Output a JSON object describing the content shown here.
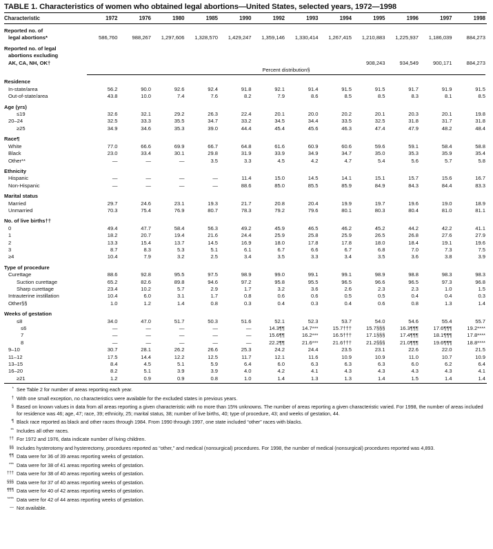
{
  "title": "TABLE 1. Characteristics of women who obtained legal abortions—United States, selected years, 1972—1998",
  "columns": [
    "Characteristic",
    "1972",
    "1976",
    "1980",
    "1985",
    "1990",
    "1992",
    "1993",
    "1994",
    "1995",
    "1996",
    "1997",
    "1998"
  ],
  "percent_distribution_label": "Percent distribution§",
  "rows": [
    {
      "label": "Reported no. of",
      "type": "sec",
      "values": []
    },
    {
      "label": "legal abortions*",
      "indent": 1,
      "bold": true,
      "values": [
        "586,760",
        "988,267",
        "1,297,606",
        "1,328,570",
        "1,429,247",
        "1,359,146",
        "1,330,414",
        "1,267,415",
        "1,210,883",
        "1,225,937",
        "1,186,039",
        "884,273"
      ]
    },
    {
      "label": "Reported no. of legal",
      "type": "sec",
      "values": []
    },
    {
      "label": "abortions excluding",
      "indent": 1,
      "bold": true,
      "values": []
    },
    {
      "label": "AK, CA, NH, OK†",
      "indent": 1,
      "bold": true,
      "values": [
        "",
        "",
        "",
        "",
        "",
        "",
        "",
        "",
        "908,243",
        "934,549",
        "900,171",
        "884,273"
      ]
    },
    {
      "type": "pd"
    },
    {
      "label": "Residence",
      "type": "sec",
      "values": []
    },
    {
      "label": "In-state/area",
      "indent": 1,
      "values": [
        "56.2",
        "90.0",
        "92.6",
        "92.4",
        "91.8",
        "92.1",
        "91.4",
        "91.5",
        "91.5",
        "91.7",
        "91.9",
        "91.5"
      ]
    },
    {
      "label": "Out-of-state/area",
      "indent": 1,
      "values": [
        "43.8",
        "10.0",
        "7.4",
        "7.6",
        "8.2",
        "7.9",
        "8.6",
        "8.5",
        "8.5",
        "8.3",
        "8.1",
        "8.5"
      ]
    },
    {
      "label": "Age (yrs)",
      "type": "sec",
      "values": []
    },
    {
      "label": "≤19",
      "indent": 2,
      "values": [
        "32.6",
        "32.1",
        "29.2",
        "26.3",
        "22.4",
        "20.1",
        "20.0",
        "20.2",
        "20.1",
        "20.3",
        "20.1",
        "19.8"
      ]
    },
    {
      "label": "20–24",
      "indent": 1,
      "values": [
        "32.5",
        "33.3",
        "35.5",
        "34.7",
        "33.2",
        "34.5",
        "34.4",
        "33.5",
        "32.5",
        "31.8",
        "31.7",
        "31.8"
      ]
    },
    {
      "label": "≥25",
      "indent": 2,
      "values": [
        "34.9",
        "34.6",
        "35.3",
        "39.0",
        "44.4",
        "45.4",
        "45.6",
        "46.3",
        "47.4",
        "47.9",
        "48.2",
        "48.4"
      ]
    },
    {
      "label": "Race¶",
      "type": "sec",
      "values": []
    },
    {
      "label": "White",
      "indent": 1,
      "values": [
        "77.0",
        "66.6",
        "69.9",
        "66.7",
        "64.8",
        "61.6",
        "60.9",
        "60.6",
        "59.6",
        "59.1",
        "58.4",
        "58.8"
      ]
    },
    {
      "label": "Black",
      "indent": 1,
      "values": [
        "23.0",
        "33.4",
        "30.1",
        "29.8",
        "31.9",
        "33.9",
        "34.9",
        "34.7",
        "35.0",
        "35.3",
        "35.9",
        "35.4"
      ]
    },
    {
      "label": "Other**",
      "indent": 1,
      "values": [
        "—",
        "—",
        "—",
        "3.5",
        "3.3",
        "4.5",
        "4.2",
        "4.7",
        "5.4",
        "5.6",
        "5.7",
        "5.8"
      ]
    },
    {
      "label": "Ethnicity",
      "type": "sec",
      "values": []
    },
    {
      "label": "Hispanic",
      "indent": 1,
      "values": [
        "—",
        "—",
        "—",
        "—",
        "11.4",
        "15.0",
        "14.5",
        "14.1",
        "15.1",
        "15.7",
        "15.6",
        "16.7"
      ]
    },
    {
      "label": "Non-Hispanic",
      "indent": 1,
      "values": [
        "—",
        "—",
        "—",
        "—",
        "88.6",
        "85.0",
        "85.5",
        "85.9",
        "84.9",
        "84.3",
        "84.4",
        "83.3"
      ]
    },
    {
      "label": "Marital status",
      "type": "sec",
      "values": []
    },
    {
      "label": "Married",
      "indent": 1,
      "values": [
        "29.7",
        "24.6",
        "23.1",
        "19.3",
        "21.7",
        "20.8",
        "20.4",
        "19.9",
        "19.7",
        "19.6",
        "19.0",
        "18.9"
      ]
    },
    {
      "label": "Unmarried",
      "indent": 1,
      "values": [
        "70.3",
        "75.4",
        "76.9",
        "80.7",
        "78.3",
        "79.2",
        "79.6",
        "80.1",
        "80.3",
        "80.4",
        "81.0",
        "81.1"
      ]
    },
    {
      "label": "No. of live births††",
      "type": "sec",
      "values": []
    },
    {
      "label": "0",
      "indent": 1,
      "values": [
        "49.4",
        "47.7",
        "58.4",
        "56.3",
        "49.2",
        "45.9",
        "46.5",
        "46.2",
        "45.2",
        "44.2",
        "42.2",
        "41.1"
      ]
    },
    {
      "label": "1",
      "indent": 1,
      "values": [
        "18.2",
        "20.7",
        "19.4",
        "21.6",
        "24.4",
        "25.9",
        "25.8",
        "25.9",
        "26.5",
        "26.8",
        "27.6",
        "27.9"
      ]
    },
    {
      "label": "2",
      "indent": 1,
      "values": [
        "13.3",
        "15.4",
        "13.7",
        "14.5",
        "16.9",
        "18.0",
        "17.8",
        "17.8",
        "18.0",
        "18.4",
        "19.1",
        "19.6"
      ]
    },
    {
      "label": "3",
      "indent": 1,
      "values": [
        "8.7",
        "8.3",
        "5.3",
        "5.1",
        "6.1",
        "6.7",
        "6.6",
        "6.7",
        "6.8",
        "7.0",
        "7.3",
        "7.5"
      ]
    },
    {
      "label": "≥4",
      "indent": 1,
      "values": [
        "10.4",
        "7.9",
        "3.2",
        "2.5",
        "3.4",
        "3.5",
        "3.3",
        "3.4",
        "3.5",
        "3.6",
        "3.8",
        "3.9"
      ]
    },
    {
      "label": "Type of procedure",
      "type": "sec",
      "values": []
    },
    {
      "label": "Curettage",
      "indent": 1,
      "values": [
        "88.6",
        "92.8",
        "95.5",
        "97.5",
        "98.9",
        "99.0",
        "99.1",
        "99.1",
        "98.9",
        "98.8",
        "98.3",
        "98.3"
      ]
    },
    {
      "label": "Suction curettage",
      "indent": 2,
      "values": [
        "65.2",
        "82.6",
        "89.8",
        "94.6",
        "97.2",
        "95.8",
        "95.5",
        "96.5",
        "96.6",
        "96.5",
        "97.3",
        "96.8"
      ]
    },
    {
      "label": "Sharp curettage",
      "indent": 2,
      "values": [
        "23.4",
        "10.2",
        "5.7",
        "2.9",
        "1.7",
        "3.2",
        "3.6",
        "2.6",
        "2.3",
        "2.3",
        "1.0",
        "1.5"
      ]
    },
    {
      "label": "Intrauterine instillation",
      "indent": 1,
      "values": [
        "10.4",
        "6.0",
        "3.1",
        "1.7",
        "0.8",
        "0.6",
        "0.6",
        "0.5",
        "0.5",
        "0.4",
        "0.4",
        "0.3"
      ]
    },
    {
      "label": "Other§§",
      "indent": 1,
      "values": [
        "1.0",
        "1.2",
        "1.4",
        "0.8",
        "0.3",
        "0.4",
        "0.3",
        "0.4",
        "0.6",
        "0.8",
        "1.3",
        "1.4"
      ]
    },
    {
      "label": "Weeks of gestation",
      "type": "sec",
      "values": []
    },
    {
      "label": "≤8",
      "indent": 2,
      "values": [
        "34.0",
        "47.0",
        "51.7",
        "50.3",
        "51.6",
        "52.1",
        "52.3",
        "53.7",
        "54.0",
        "54.6",
        "55.4",
        "55.7"
      ]
    },
    {
      "label": "≤6",
      "indent": 3,
      "values": [
        "—",
        "—",
        "—",
        "—",
        "—",
        "14.3¶¶",
        "14.7***",
        "15.7†††",
        "15.7§§§",
        "16.3¶¶¶",
        "17.6¶¶¶",
        "19.2****"
      ]
    },
    {
      "label": "7",
      "indent": 3,
      "values": [
        "—",
        "—",
        "—",
        "—",
        "—",
        "15.6¶¶",
        "16.2***",
        "16.5†††",
        "17.1§§§",
        "17.4¶¶¶",
        "18.1¶¶¶",
        "17.8****"
      ]
    },
    {
      "label": "8",
      "indent": 3,
      "values": [
        "—",
        "—",
        "—",
        "—",
        "—",
        "22.2¶¶",
        "21.6***",
        "21.6†††",
        "21.2§§§",
        "21.0¶¶¶",
        "19.6¶¶¶",
        "18.8****"
      ]
    },
    {
      "label": "9–10",
      "indent": 1,
      "values": [
        "30.7",
        "28.1",
        "26.2",
        "26.6",
        "25.3",
        "24.2",
        "24.4",
        "23.5",
        "23.1",
        "22.6",
        "22.0",
        "21.5"
      ]
    },
    {
      "label": "11–12",
      "indent": 1,
      "values": [
        "17.5",
        "14.4",
        "12.2",
        "12.5",
        "11.7",
        "12.1",
        "11.6",
        "10.9",
        "10.9",
        "11.0",
        "10.7",
        "10.9"
      ]
    },
    {
      "label": "13–15",
      "indent": 1,
      "values": [
        "8.4",
        "4.5",
        "5.1",
        "5.9",
        "6.4",
        "6.0",
        "6.3",
        "6.3",
        "6.3",
        "6.0",
        "6.2",
        "6.4"
      ]
    },
    {
      "label": "16–20",
      "indent": 1,
      "values": [
        "8.2",
        "5.1",
        "3.9",
        "3.9",
        "4.0",
        "4.2",
        "4.1",
        "4.3",
        "4.3",
        "4.3",
        "4.3",
        "4.1"
      ]
    },
    {
      "label": "≥21",
      "indent": 2,
      "type": "last",
      "values": [
        "1.2",
        "0.9",
        "0.9",
        "0.8",
        "1.0",
        "1.4",
        "1.3",
        "1.3",
        "1.4",
        "1.5",
        "1.4",
        "1.4"
      ]
    }
  ],
  "footnotes": [
    {
      "mark": "*",
      "text": "See Table 2 for number of areas reporting each year."
    },
    {
      "mark": "†",
      "text": "With one small exception, no characteristics were available for the excluded states in previous years."
    },
    {
      "mark": "§",
      "text": "Based on known values in data from all areas reporting a given characteristic with no more than 15% unknowns. The number of areas reporting a given characteristic varied. For 1998, the number of areas included for residence was 46; age, 47; race, 39; ethnicity, 25; marital status, 38; number of live births, 40; type of procedure, 43; and weeks of gestation, 44."
    },
    {
      "mark": "¶",
      "text": "Black race reported as black and other races through 1984. From 1990 through 1997, one state included “other” races with blacks."
    },
    {
      "mark": "**",
      "text": "Includes all other races."
    },
    {
      "mark": "††",
      "text": "For 1972 and 1976, data indicate number of living children."
    },
    {
      "mark": "§§",
      "text": "Includes hysterotomy and hysterectomy, procedures reported as “other,” and medical (nonsurgical) procedures. For 1998, the number of medical (nonsurgical) procedures reported was 4,893."
    },
    {
      "mark": "¶¶",
      "text": "Data were for 36 of 39 areas reporting weeks of gestation."
    },
    {
      "mark": "***",
      "text": "Data were for 38 of 41 areas reporting weeks of gestation."
    },
    {
      "mark": "†††",
      "text": "Data were for 38 of 40 areas reporting weeks of gestation."
    },
    {
      "mark": "§§§",
      "text": "Data were for 37 of 40 areas reporting weeks of gestation."
    },
    {
      "mark": "¶¶¶",
      "text": "Data were for 40 of 42 areas reporting weeks of gestation."
    },
    {
      "mark": "****",
      "text": "Data were for 42 of 44 areas reporting weeks of gestation."
    },
    {
      "mark": "—",
      "text": "Not available."
    }
  ]
}
